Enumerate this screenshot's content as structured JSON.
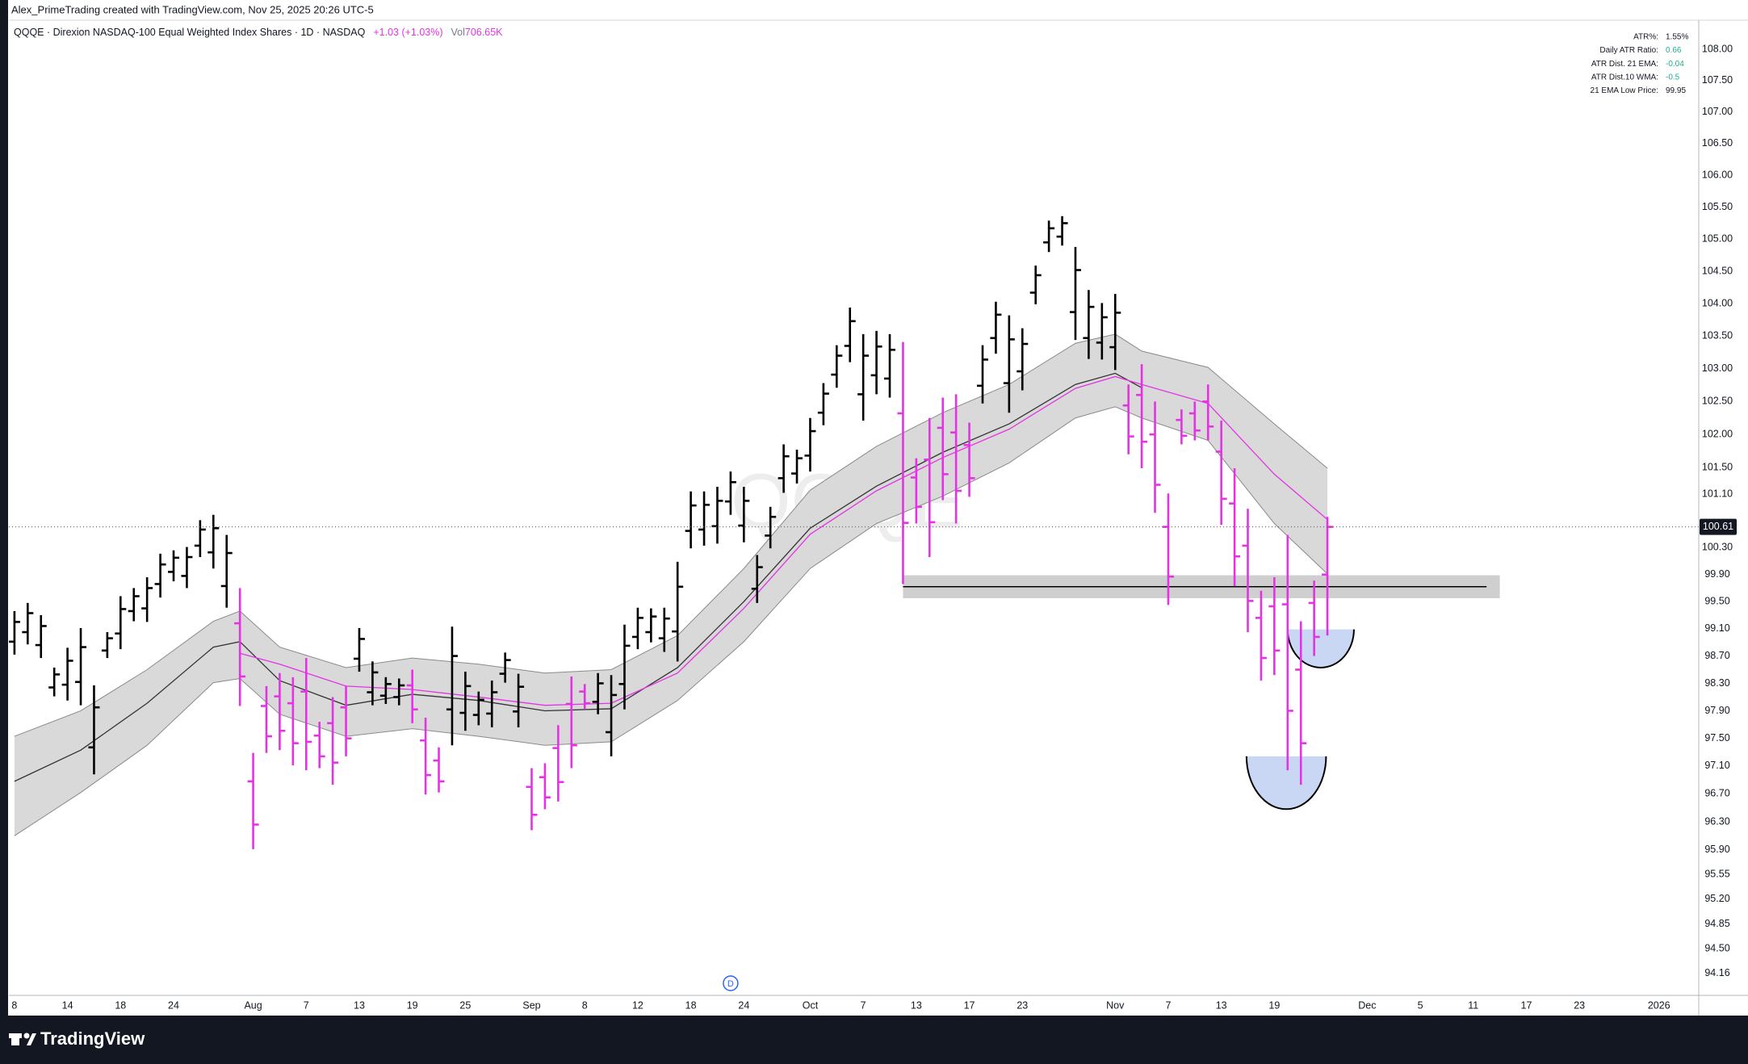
{
  "header": {
    "credit": "Alex_PrimeTrading created with TradingView.com, Nov 25, 2025 20:26 UTC-5",
    "symbol": "QQQE · Direxion NASDAQ-100 Equal Weighted Index Shares · 1D · NASDAQ",
    "change": "+1.03 (+1.03%)",
    "volume_label": "Vol",
    "volume": "706.65K"
  },
  "stats": {
    "rows": [
      {
        "label": "ATR%:",
        "value": "1.55%",
        "color": "#131722"
      },
      {
        "label": "Daily ATR Ratio:",
        "value": "0.66",
        "color": "#22ab94"
      },
      {
        "label": "ATR Dist. 21 EMA:",
        "value": "-0.04",
        "color": "#22ab94"
      },
      {
        "label": "ATR Dist.10 WMA:",
        "value": "-0.5",
        "color": "#22ab94"
      },
      {
        "label": "21 EMA Low Price:",
        "value": "99.95",
        "color": "#131722"
      }
    ]
  },
  "footer": {
    "brand": "TradingView"
  },
  "chart_data": {
    "type": "ohlc",
    "watermark": "QQQE",
    "log_scale": true,
    "grid": false,
    "xlim": [
      -0.42,
      127
    ],
    "ylim": [
      93.85,
      108.47
    ],
    "xticks": [
      {
        "value": 0,
        "label": "8"
      },
      {
        "value": 4,
        "label": "14"
      },
      {
        "value": 8,
        "label": "18"
      },
      {
        "value": 12,
        "label": "24"
      },
      {
        "value": 18,
        "label": "Aug"
      },
      {
        "value": 22,
        "label": "7"
      },
      {
        "value": 26,
        "label": "13"
      },
      {
        "value": 30,
        "label": "19"
      },
      {
        "value": 34,
        "label": "25"
      },
      {
        "value": 39,
        "label": "Sep"
      },
      {
        "value": 43,
        "label": "8"
      },
      {
        "value": 47,
        "label": "12"
      },
      {
        "value": 51,
        "label": "18"
      },
      {
        "value": 55,
        "label": "24"
      },
      {
        "value": 60,
        "label": "Oct"
      },
      {
        "value": 64,
        "label": "7"
      },
      {
        "value": 68,
        "label": "13"
      },
      {
        "value": 72,
        "label": "17"
      },
      {
        "value": 76,
        "label": "23"
      },
      {
        "value": 83,
        "label": "Nov"
      },
      {
        "value": 87,
        "label": "7"
      },
      {
        "value": 91,
        "label": "13"
      },
      {
        "value": 95,
        "label": "19"
      },
      {
        "value": 102,
        "label": "Dec"
      },
      {
        "value": 106,
        "label": "5"
      },
      {
        "value": 110,
        "label": "11"
      },
      {
        "value": 114,
        "label": "17"
      },
      {
        "value": 118,
        "label": "23"
      },
      {
        "value": 124,
        "label": "2026"
      }
    ],
    "yticks": [
      {
        "value": 108,
        "label": "108.00"
      },
      {
        "value": 107.5,
        "label": "107.50"
      },
      {
        "value": 107,
        "label": "107.00"
      },
      {
        "value": 106.5,
        "label": "106.50"
      },
      {
        "value": 106,
        "label": "106.00"
      },
      {
        "value": 105.5,
        "label": "105.50"
      },
      {
        "value": 105,
        "label": "105.00"
      },
      {
        "value": 104.5,
        "label": "104.50"
      },
      {
        "value": 104,
        "label": "104.00"
      },
      {
        "value": 103.5,
        "label": "103.50"
      },
      {
        "value": 103,
        "label": "103.00"
      },
      {
        "value": 102.5,
        "label": "102.50"
      },
      {
        "value": 102,
        "label": "102.00"
      },
      {
        "value": 101.5,
        "label": "101.50"
      },
      {
        "value": 101.1,
        "label": "101.10"
      },
      {
        "value": 100.3,
        "label": "100.30"
      },
      {
        "value": 99.9,
        "label": "99.90"
      },
      {
        "value": 99.5,
        "label": "99.50"
      },
      {
        "value": 99.1,
        "label": "99.10"
      },
      {
        "value": 98.7,
        "label": "98.70"
      },
      {
        "value": 98.3,
        "label": "98.30"
      },
      {
        "value": 97.9,
        "label": "97.90"
      },
      {
        "value": 97.5,
        "label": "97.50"
      },
      {
        "value": 97.1,
        "label": "97.10"
      },
      {
        "value": 96.7,
        "label": "96.70"
      },
      {
        "value": 96.3,
        "label": "96.30"
      },
      {
        "value": 95.9,
        "label": "95.90"
      },
      95.55,
      {
        "value": 95.2,
        "label": "95.20"
      },
      94.85,
      {
        "value": 94.5,
        "label": "94.50"
      },
      94.16
    ],
    "open": [
      98.91,
      99.05,
      98.86,
      98.24,
      98.28,
      98.32,
      97.37,
      98.78,
      99.03,
      99.36,
      99.4,
      99.76,
      99.94,
      99.88,
      100.33,
      100.23,
      99.73,
      99.18,
      96.88,
      97.97,
      98.11,
      98.01,
      98.18,
      97.54,
      97.72,
      97.95,
      98.66,
      98.17,
      98.12,
      98.1,
      98.27,
      97.47,
      97.18,
      97.92,
      97.87,
      97.84,
      97.86,
      98.44,
      97.89,
      96.8,
      96.94,
      97.36,
      98.0,
      98.18,
      98.03,
      97.59,
      98.29,
      98.98,
      99.05,
      98.96,
      99.06,
      100.55,
      100.57,
      100.62,
      100.99,
      100.63,
      99.69,
      100.48,
      101.34,
      101.41,
      101.68,
      102.33,
      102.91,
      103.35,
      102.61,
      102.9,
      102.85,
      102.32,
      101.35,
      101.62,
      102.1,
      102.03,
      101.84,
      102.74,
      103.47,
      102.78,
      102.96,
      104.17,
      104.95,
      105.04,
      103.87,
      103.47,
      103.4,
      103.33,
      102.44,
      102.6,
      102.0,
      100.61,
      102.22,
      102.32,
      102.5,
      101.74,
      100.96,
      100.33,
      99.26,
      99.43,
      99.46,
      98.5,
      99.48,
      99.9
    ],
    "high": [
      99.36,
      99.48,
      99.3,
      98.53,
      98.82,
      99.11,
      98.27,
      99.05,
      99.58,
      99.7,
      99.86,
      100.21,
      100.26,
      100.31,
      100.71,
      100.79,
      100.49,
      99.7,
      97.29,
      98.26,
      98.45,
      98.39,
      98.67,
      97.74,
      98.1,
      98.26,
      99.11,
      98.62,
      98.39,
      98.37,
      98.5,
      97.8,
      97.37,
      99.13,
      98.47,
      98.18,
      98.34,
      98.75,
      98.44,
      97.07,
      97.14,
      97.69,
      98.4,
      98.29,
      98.45,
      98.42,
      99.16,
      99.41,
      99.4,
      99.41,
      100.09,
      101.14,
      101.14,
      101.21,
      101.44,
      101.21,
      100.19,
      100.91,
      101.85,
      101.77,
      102.25,
      102.78,
      103.36,
      103.94,
      103.53,
      103.58,
      103.53,
      103.41,
      101.64,
      102.25,
      102.56,
      102.61,
      102.18,
      103.36,
      104.03,
      103.82,
      103.62,
      104.59,
      105.29,
      105.36,
      104.88,
      104.21,
      104.01,
      104.15,
      102.76,
      103.07,
      102.5,
      101.11,
      102.38,
      102.5,
      102.76,
      102.21,
      101.49,
      100.88,
      99.66,
      99.86,
      100.49,
      99.21,
      99.81,
      100.76
    ],
    "low": [
      98.72,
      98.87,
      98.67,
      98.11,
      98.05,
      97.98,
      96.98,
      98.67,
      98.8,
      99.21,
      99.2,
      99.56,
      99.8,
      99.7,
      100.16,
      99.99,
      99.41,
      97.97,
      95.91,
      97.29,
      97.33,
      97.11,
      97.04,
      97.07,
      96.83,
      97.24,
      98.47,
      97.98,
      98.0,
      97.98,
      97.72,
      96.69,
      96.72,
      97.4,
      97.61,
      97.69,
      97.66,
      98.31,
      97.66,
      96.18,
      96.48,
      96.59,
      97.07,
      97.92,
      97.85,
      97.24,
      97.92,
      98.8,
      98.9,
      98.76,
      98.62,
      100.29,
      100.33,
      100.36,
      100.79,
      100.38,
      99.48,
      100.29,
      101.12,
      101.26,
      101.44,
      102.14,
      102.71,
      103.1,
      102.21,
      102.61,
      102.56,
      99.76,
      100.66,
      100.16,
      101.01,
      100.66,
      101.06,
      102.47,
      103.23,
      102.33,
      102.67,
      103.99,
      104.8,
      104.9,
      103.44,
      103.15,
      103.14,
      102.98,
      101.7,
      101.49,
      100.82,
      99.45,
      101.85,
      101.91,
      101.91,
      100.64,
      99.73,
      99.05,
      98.34,
      98.42,
      97.04,
      96.83,
      98.7,
      99.0
    ],
    "close": [
      99.2,
      99.33,
      99.14,
      98.43,
      98.63,
      98.83,
      97.95,
      98.96,
      99.39,
      99.58,
      99.7,
      100.05,
      100.15,
      100.16,
      100.57,
      100.59,
      100.22,
      98.4,
      96.26,
      97.53,
      97.61,
      97.43,
      97.45,
      97.24,
      97.15,
      97.5,
      98.95,
      98.46,
      98.29,
      98.27,
      97.92,
      96.97,
      96.88,
      98.7,
      98.26,
      98.06,
      98.17,
      98.64,
      98.25,
      96.4,
      96.65,
      96.87,
      97.4,
      98.01,
      98.3,
      98.13,
      98.85,
      99.26,
      99.28,
      99.25,
      99.72,
      100.93,
      100.94,
      101.0,
      101.28,
      101.0,
      100.01,
      100.76,
      101.67,
      101.64,
      102.05,
      102.62,
      103.2,
      103.73,
      103.2,
      103.34,
      103.29,
      100.67,
      100.91,
      100.68,
      101.4,
      101.15,
      101.34,
      103.14,
      103.83,
      103.45,
      103.38,
      104.44,
      105.17,
      105.25,
      104.52,
      103.95,
      103.79,
      103.86,
      101.97,
      101.89,
      101.24,
      99.87,
      101.98,
      102.06,
      102.12,
      101.03,
      100.17,
      99.51,
      98.67,
      98.78,
      97.9,
      97.43,
      98.98,
      100.61
    ],
    "colors": [
      "#000000",
      "#000000",
      "#000000",
      "#000000",
      "#000000",
      "#000000",
      "#000000",
      "#000000",
      "#000000",
      "#000000",
      "#000000",
      "#000000",
      "#000000",
      "#000000",
      "#000000",
      "#000000",
      "#000000",
      "#e433e4",
      "#e433e4",
      "#e433e4",
      "#e433e4",
      "#e433e4",
      "#e433e4",
      "#e433e4",
      "#e433e4",
      "#e433e4",
      "#000000",
      "#000000",
      "#000000",
      "#000000",
      "#e433e4",
      "#e433e4",
      "#e433e4",
      "#000000",
      "#000000",
      "#000000",
      "#000000",
      "#000000",
      "#000000",
      "#e433e4",
      "#e433e4",
      "#e433e4",
      "#e433e4",
      "#e433e4",
      "#000000",
      "#000000",
      "#000000",
      "#000000",
      "#000000",
      "#000000",
      "#000000",
      "#000000",
      "#000000",
      "#000000",
      "#000000",
      "#000000",
      "#000000",
      "#000000",
      "#000000",
      "#000000",
      "#000000",
      "#000000",
      "#000000",
      "#000000",
      "#000000",
      "#000000",
      "#000000",
      "#e433e4",
      "#e433e4",
      "#e433e4",
      "#e433e4",
      "#e433e4",
      "#e433e4",
      "#000000",
      "#000000",
      "#000000",
      "#000000",
      "#000000",
      "#000000",
      "#000000",
      "#000000",
      "#000000",
      "#000000",
      "#000000",
      "#e433e4",
      "#e433e4",
      "#e433e4",
      "#e433e4",
      "#e433e4",
      "#e433e4",
      "#e433e4",
      "#e433e4",
      "#e433e4",
      "#e433e4",
      "#e433e4",
      "#e433e4",
      "#e433e4",
      "#e433e4",
      "#e433e4",
      "#e433e4"
    ],
    "band": {
      "x": [
        0,
        5,
        10,
        15,
        17,
        20,
        25,
        30,
        35,
        40,
        45,
        50,
        55,
        60,
        65,
        70,
        75,
        80,
        83,
        85,
        90,
        95,
        99
      ],
      "upper": [
        97.53,
        97.9,
        98.5,
        99.21,
        99.36,
        98.83,
        98.53,
        98.67,
        98.58,
        98.45,
        98.5,
        99.0,
        99.99,
        101.16,
        101.82,
        102.33,
        102.76,
        103.39,
        103.53,
        103.27,
        103.02,
        102.16,
        101.49
      ],
      "lower": [
        96.1,
        96.72,
        97.4,
        98.31,
        98.37,
        97.85,
        97.53,
        97.64,
        97.53,
        97.4,
        97.45,
        98.05,
        98.91,
        99.99,
        100.66,
        101.07,
        101.57,
        102.25,
        102.42,
        102.25,
        101.91,
        100.66,
        99.91
      ],
      "mid": [
        96.88,
        97.33,
        98.01,
        98.83,
        98.91,
        98.34,
        97.98,
        98.14,
        98.05,
        97.9,
        97.93,
        98.53,
        99.5,
        100.59,
        101.22,
        101.73,
        102.16,
        102.76,
        102.93,
        102.71,
        null,
        null,
        null
      ],
      "ema": [
        null,
        null,
        null,
        null,
        98.74,
        98.58,
        98.26,
        98.21,
        98.1,
        97.98,
        98.01,
        98.45,
        99.4,
        100.5,
        101.15,
        101.65,
        102.08,
        102.7,
        102.88,
        102.76,
        102.47,
        101.4,
        100.72
      ],
      "fill": "#d9d9d9",
      "edge_color": "#8a8a8a",
      "mid_color": "#333333",
      "ema_color": "#e433e4"
    },
    "zone": {
      "x": [
        67,
        112
      ],
      "y": [
        99.55,
        99.89
      ],
      "color": "#cfcfcf"
    },
    "level": {
      "x": [
        67,
        111
      ],
      "y": 99.72,
      "color": "#000000"
    },
    "cups": [
      {
        "x": [
          96,
          101
        ],
        "low": 98.53,
        "high": 99.09
      },
      {
        "x": [
          92.9,
          98.9
        ],
        "low": 96.48,
        "high": 97.24
      }
    ],
    "cup_color": "#c9d7f5",
    "events": [
      {
        "x": 54,
        "label": "D"
      }
    ]
  }
}
